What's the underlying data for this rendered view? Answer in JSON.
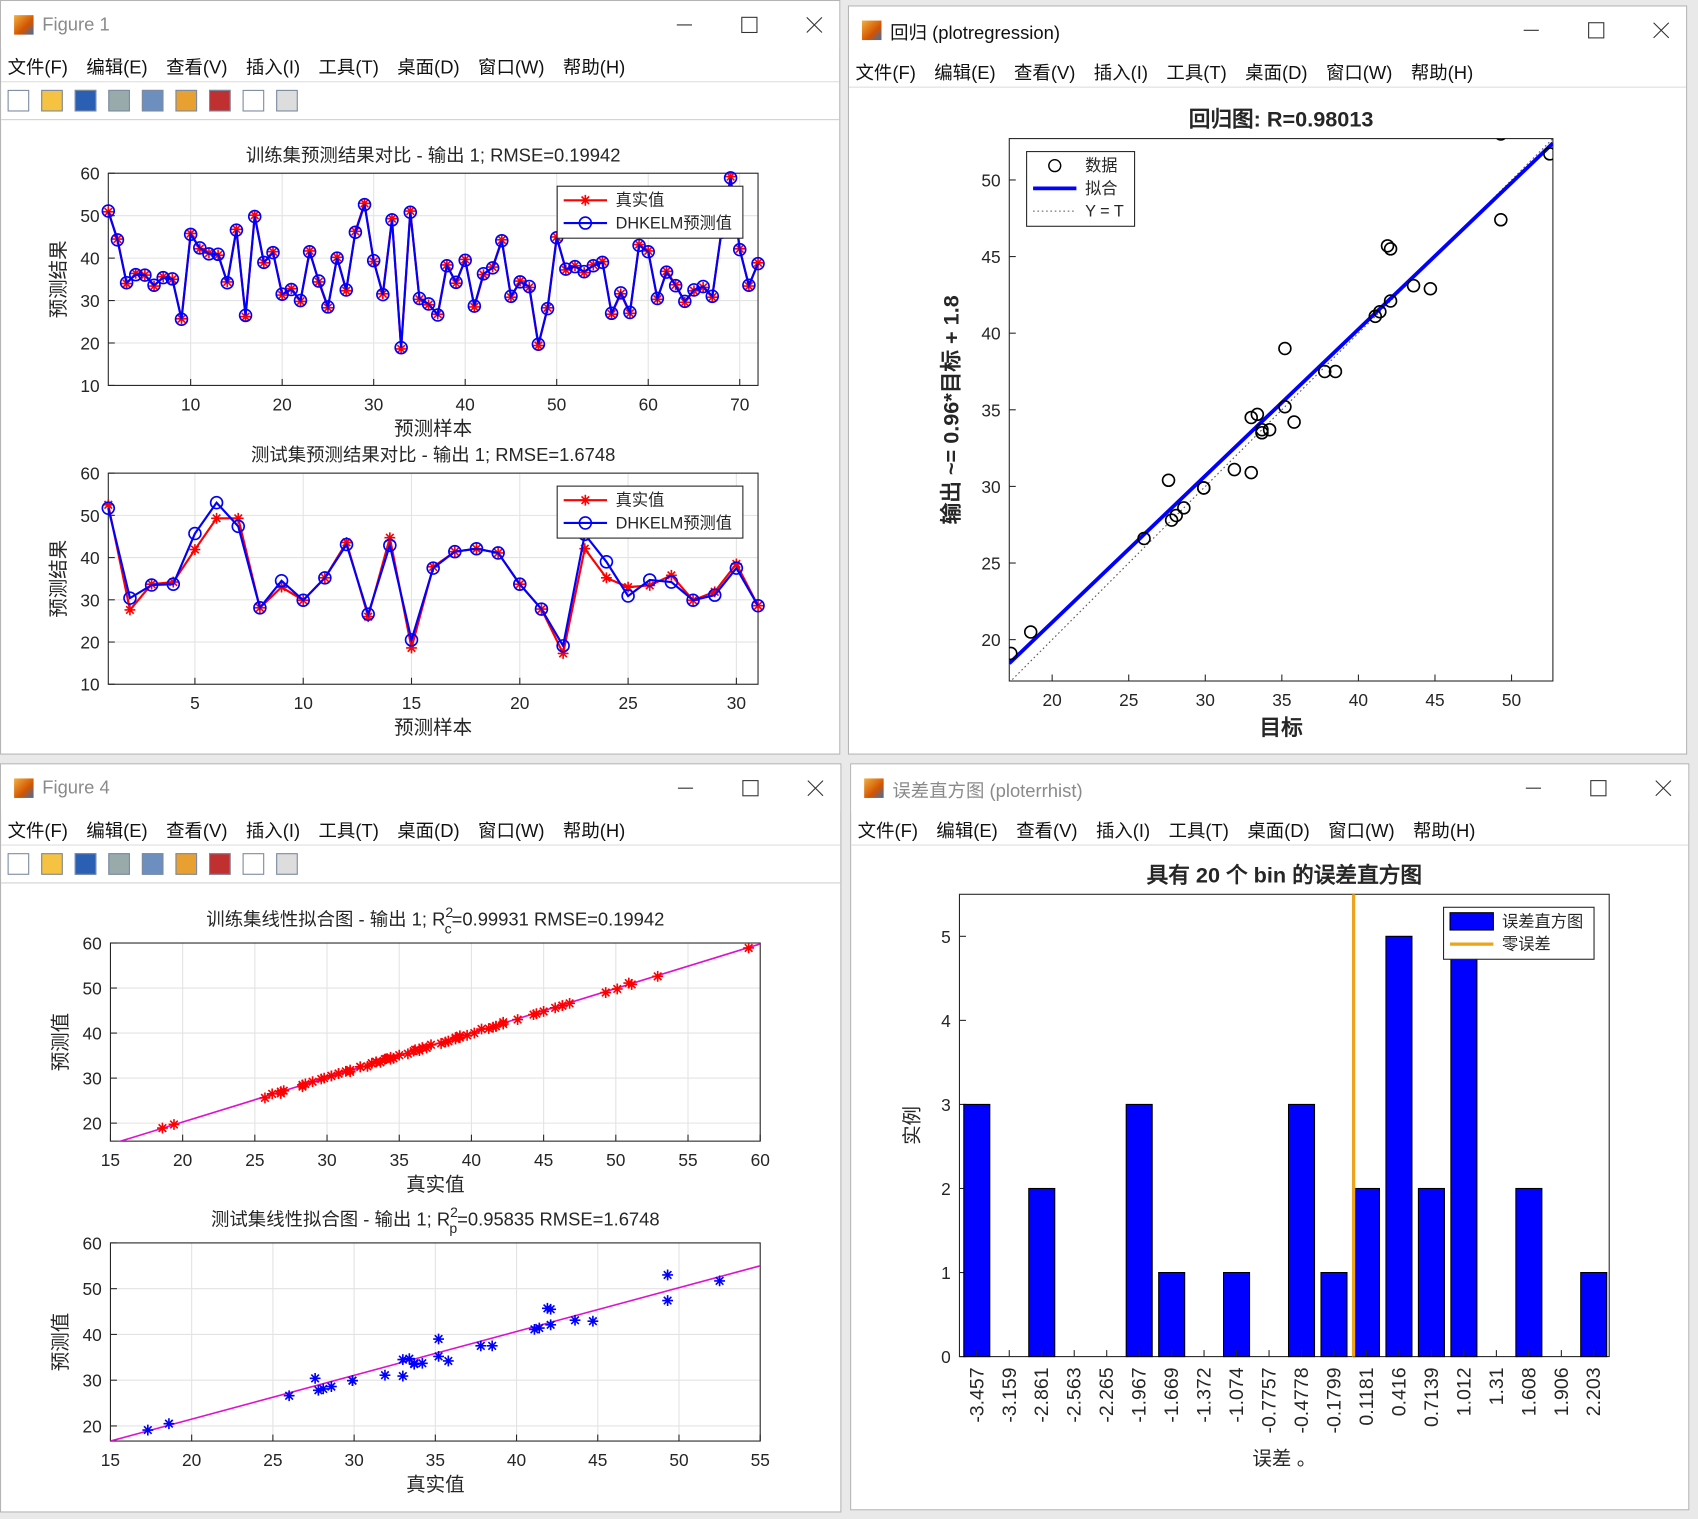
{
  "menu": [
    "文件(F)",
    "编辑(E)",
    "查看(V)",
    "插入(I)",
    "工具(T)",
    "桌面(D)",
    "窗口(W)",
    "帮助(H)"
  ],
  "windows": [
    {
      "title": "Figure 1",
      "charts": [
        {
          "type": "line",
          "title": "训练集预测结果对比 - 输出 1; RMSE=0.19942",
          "xlabel": "预测样本",
          "ylabel": "预测结果",
          "xlim": [
            1,
            72
          ],
          "ylim": [
            10,
            60
          ],
          "xticks": [
            10,
            20,
            30,
            40,
            50,
            60,
            70
          ],
          "yticks": [
            10,
            20,
            30,
            40,
            50,
            60
          ],
          "grid": true,
          "legend_position": "northeast",
          "series": [
            {
              "name": "真实值",
              "color": "#ff0000",
              "marker": "*",
              "values": [
                50.9,
                44.5,
                34,
                36.4,
                36,
                33.4,
                35.6,
                35,
                25.7,
                45.8,
                42.2,
                41.2,
                40.7,
                34.4,
                46.8,
                26.2,
                50.1,
                38.9,
                41.5,
                31.3,
                32.8,
                29.8,
                41.7,
                34.4,
                28.3,
                40.2,
                32.3,
                46.3,
                52.9,
                39.2,
                31.6,
                49.3,
                18.6,
                51.1,
                30.3,
                29,
                26.8,
                38.4,
                34.1,
                39.7,
                28.5,
                36.1,
                37.9,
                44.3,
                30.8,
                34.6,
                33.1,
                19.4,
                28.3,
                45,
                37.2,
                38.2,
                36.6,
                38.4,
                39.2,
                26.8,
                31.6,
                27,
                43.2,
                41.7,
                30.3,
                36.9,
                33.7,
                29.6,
                32.3,
                33.1,
                30.8,
                46.3,
                59.2,
                42.2,
                33.4,
                38.9
              ]
            },
            {
              "name": "DHKELM预测值",
              "color": "#0000ff",
              "marker": "o",
              "values": [
                51.1,
                44.3,
                34.2,
                36.1,
                36,
                33.6,
                35.4,
                35.1,
                25.6,
                45.6,
                42.4,
                41,
                40.9,
                34.2,
                46.6,
                26.5,
                49.8,
                39,
                41.3,
                31.5,
                32.6,
                30,
                41.5,
                34.6,
                28.5,
                40,
                32.5,
                46.1,
                52.6,
                39.4,
                31.4,
                49,
                18.9,
                50.8,
                30.5,
                29.2,
                26.6,
                38.2,
                34.3,
                39.5,
                28.7,
                36.3,
                37.7,
                44.1,
                31,
                34.4,
                33.3,
                19.7,
                28.1,
                44.8,
                37.4,
                38,
                36.8,
                38.2,
                39,
                27,
                31.8,
                27.2,
                43,
                41.5,
                30.5,
                36.7,
                33.5,
                29.8,
                32.5,
                33.3,
                31,
                46.1,
                58.9,
                42,
                33.6,
                38.7
              ]
            }
          ]
        },
        {
          "type": "line",
          "title": "测试集预测结果对比 - 输出 1; RMSE=1.6748",
          "xlabel": "预测样本",
          "ylabel": "预测结果",
          "xlim": [
            1,
            31
          ],
          "ylim": [
            10,
            60
          ],
          "xticks": [
            5,
            10,
            15,
            20,
            25,
            30
          ],
          "yticks": [
            10,
            20,
            30,
            40,
            50,
            60
          ],
          "grid": true,
          "legend_position": "northeast",
          "series": [
            {
              "name": "真实值",
              "color": "#ff0000",
              "marker": "*",
              "values": [
                52.5,
                27.6,
                33.7,
                34.2,
                41.9,
                49.3,
                49.3,
                28.1,
                33,
                29.9,
                35.2,
                43.6,
                26,
                44.7,
                18.6,
                37.8,
                41.4,
                42.1,
                41.1,
                33.7,
                27.8,
                17.3,
                42.1,
                35.2,
                33,
                33.4,
                35.8,
                29.9,
                31.9,
                38.5,
                28.6
              ]
            },
            {
              "name": "DHKELM预测值",
              "color": "#0000ff",
              "marker": "o",
              "values": [
                51.7,
                30.4,
                33.5,
                33.7,
                45.7,
                53,
                47.4,
                28.1,
                34.5,
                29.9,
                35.2,
                43.1,
                26.6,
                42.9,
                20.5,
                37.5,
                41.4,
                42.1,
                41.1,
                33.7,
                27.8,
                19.1,
                45.5,
                39,
                30.9,
                34.7,
                34.2,
                29.9,
                31.1,
                37.5,
                28.6
              ]
            }
          ]
        }
      ]
    },
    {
      "title": "回归 (plotregression)",
      "charts": [
        {
          "type": "scatter",
          "title": "回归图: R=0.98013",
          "xlabel": "目标",
          "ylabel": "输出 ~= 0.96*目标 + 1.8",
          "xlim": [
            17.2,
            52.7
          ],
          "ylim": [
            17.3,
            52.7
          ],
          "xticks": [
            20,
            25,
            30,
            35,
            40,
            45,
            50
          ],
          "yticks": [
            20,
            25,
            30,
            35,
            40,
            45,
            50
          ],
          "grid": false,
          "marker": "o",
          "color": "#000000",
          "fit_color": "#0000ff",
          "identity": true,
          "legend": [
            "数据",
            "拟合",
            "Y = T"
          ],
          "legend_position": "northwest",
          "fit_line": {
            "x": [
              17.2,
              52.7
            ],
            "y": [
              18.45,
              52.4
            ]
          }
        }
      ]
    },
    {
      "title": "Figure 4",
      "charts": [
        {
          "type": "scatter",
          "title": "训练集线性拟合图 - 输出 1; R",
          "title_sup": "2",
          "title_sub": "c",
          "title_rest": "=0.99931  RMSE=0.19942",
          "xlabel": "真实值",
          "ylabel": "预测值",
          "xlim": [
            15,
            60
          ],
          "ylim": [
            16,
            60
          ],
          "xticks": [
            15,
            20,
            25,
            30,
            35,
            40,
            45,
            50,
            55,
            60
          ],
          "yticks": [
            20,
            30,
            40,
            50,
            60
          ],
          "grid": true,
          "marker": "*",
          "color": "#ff0000",
          "fit_color": "#e010d0",
          "fit_line": {
            "x": [
              15,
              60
            ],
            "y": [
              15.3,
              59.8
            ]
          }
        },
        {
          "type": "scatter",
          "title": "测试集线性拟合图 - 输出 1; R",
          "title_sup": "2",
          "title_sub": "p",
          "title_rest": "=0.95835  RMSE=1.6748",
          "xlabel": "真实值",
          "ylabel": "预测值",
          "xlim": [
            15,
            55
          ],
          "ylim": [
            16.7,
            60
          ],
          "xticks": [
            15,
            20,
            25,
            30,
            35,
            40,
            45,
            50,
            55
          ],
          "yticks": [
            20,
            30,
            40,
            50,
            60
          ],
          "grid": true,
          "marker": "*",
          "color": "#0000ff",
          "fit_color": "#e010d0",
          "fit_line": {
            "x": [
              15,
              55
            ],
            "y": [
              16.7,
              55
            ]
          }
        }
      ]
    },
    {
      "title": "误差直方图 (ploterrhist)",
      "charts": [
        {
          "type": "histogram",
          "title": "具有 20 个 bin 的误差直方图",
          "xlabel": "误差 。",
          "ylabel": "实例",
          "x": [
            -3.457,
            -3.159,
            -2.861,
            -2.563,
            -2.265,
            -1.967,
            -1.669,
            -1.372,
            -1.074,
            -0.7757,
            -0.4778,
            -0.1799,
            0.1181,
            0.416,
            0.7139,
            1.012,
            1.31,
            1.608,
            1.906,
            2.203
          ],
          "values": [
            3,
            0,
            2,
            0,
            0,
            3,
            1,
            0,
            1,
            0,
            3,
            1,
            2,
            5,
            2,
            5,
            0,
            2,
            0,
            1
          ],
          "xlim": [
            -3.616,
            2.345
          ],
          "ylim": [
            0,
            5.5
          ],
          "yticks": [
            0,
            1,
            2,
            3,
            4,
            5
          ],
          "grid": false,
          "color": "#0000ff",
          "zero_line": 0,
          "zero_color": "#eda31b",
          "legend": [
            "误差直方图",
            "零误差"
          ],
          "legend_position": "northeast"
        }
      ]
    }
  ]
}
